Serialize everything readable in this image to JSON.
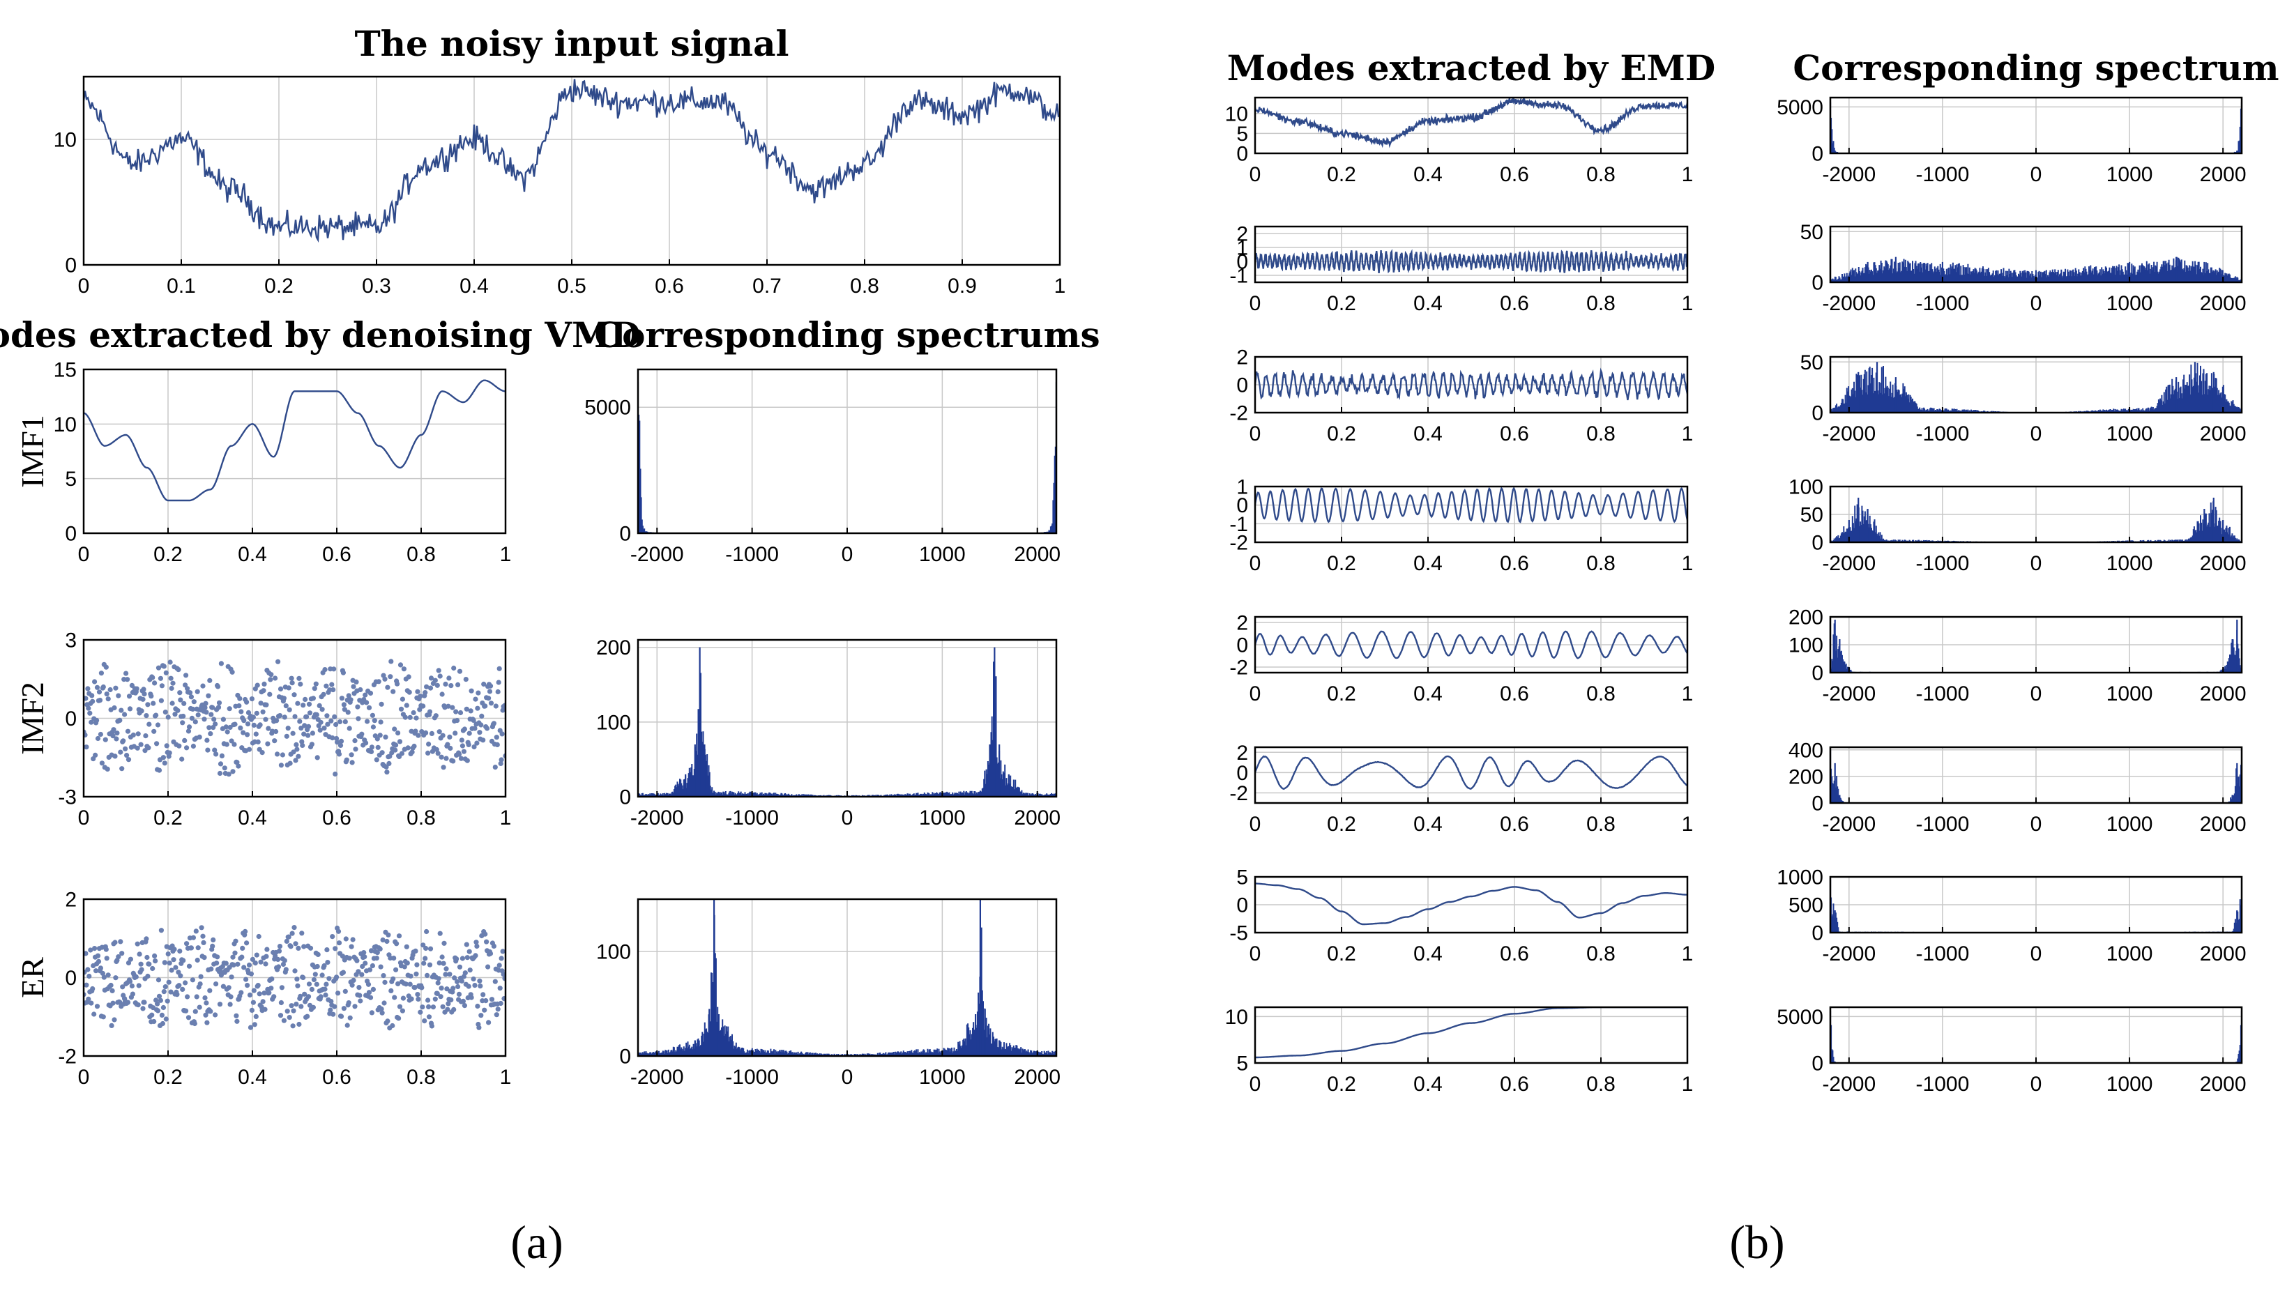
{
  "figure": {
    "caption_a": "(a)",
    "caption_b": "(b)"
  },
  "colors": {
    "line": "#2f4a8a",
    "scatter": "#6a7fb0",
    "spectrum": "#1f3a93"
  },
  "chart_data": [
    {
      "id": "noisy-input",
      "type": "line",
      "title": "The noisy input signal",
      "ylabel": "",
      "xlim": [
        0,
        1
      ],
      "ylim": [
        0,
        15
      ],
      "xticks": [
        0,
        0.1,
        0.2,
        0.3,
        0.4,
        0.5,
        0.6,
        0.7,
        0.8,
        0.9,
        1
      ],
      "xticklabels": [
        "0",
        "0.1",
        "0.2",
        "0.3",
        "0.4",
        "0.5",
        "0.6",
        "0.7",
        "0.8",
        "0.9",
        "1"
      ],
      "yticks": [
        0,
        10
      ],
      "yticklabels": [
        "0",
        "10"
      ],
      "x": [
        0,
        0.05,
        0.1,
        0.15,
        0.2,
        0.25,
        0.3,
        0.35,
        0.4,
        0.45,
        0.5,
        0.55,
        0.6,
        0.65,
        0.7,
        0.75,
        0.8,
        0.85,
        0.9,
        0.95,
        1
      ],
      "y": [
        13,
        8,
        10,
        6,
        3,
        3,
        3,
        8,
        10,
        7,
        14,
        13,
        13,
        13,
        9,
        6,
        8,
        13,
        12,
        14,
        12
      ],
      "noise": 0.9
    },
    {
      "id": "vmd-imf1-signal",
      "type": "line",
      "title": "Modes extracted by denoising VMD",
      "ylabel": "IMF1",
      "xlim": [
        0,
        1
      ],
      "ylim": [
        0,
        15
      ],
      "xticks": [
        0,
        0.2,
        0.4,
        0.6,
        0.8,
        1
      ],
      "xticklabels": [
        "0",
        "0.2",
        "0.4",
        "0.6",
        "0.8",
        "1"
      ],
      "yticks": [
        0,
        5,
        10,
        15
      ],
      "yticklabels": [
        "0",
        "5",
        "10",
        "15"
      ],
      "x": [
        0,
        0.05,
        0.1,
        0.15,
        0.2,
        0.25,
        0.3,
        0.35,
        0.4,
        0.45,
        0.5,
        0.55,
        0.6,
        0.65,
        0.7,
        0.75,
        0.8,
        0.85,
        0.9,
        0.95,
        1
      ],
      "y": [
        11,
        8,
        9,
        6,
        3,
        3,
        4,
        8,
        10,
        7,
        13,
        13,
        13,
        11,
        8,
        6,
        9,
        13,
        12,
        14,
        13
      ],
      "noise": 0
    },
    {
      "id": "vmd-imf1-spectrum",
      "type": "bar",
      "title": "Corresponding spectrums",
      "ylabel": "",
      "xlim": [
        -2200,
        2200
      ],
      "ylim": [
        0,
        6500
      ],
      "xticks": [
        -2000,
        -1000,
        0,
        1000,
        2000
      ],
      "xticklabels": [
        "-2000",
        "-1000",
        "0",
        "1000",
        "2000"
      ],
      "yticks": [
        0,
        5000
      ],
      "yticklabels": [
        "0",
        "5000"
      ],
      "x": [
        -2200,
        -2150,
        -2100,
        -2000,
        0,
        2000,
        2100,
        2150,
        2200
      ],
      "y": [
        6000,
        300,
        60,
        20,
        10,
        20,
        60,
        300,
        6000
      ]
    },
    {
      "id": "vmd-imf2-signal",
      "type": "scatter",
      "title": "",
      "ylabel": "IMF2",
      "xlim": [
        0,
        1
      ],
      "ylim": [
        -3,
        3
      ],
      "xticks": [
        0,
        0.2,
        0.4,
        0.6,
        0.8,
        1
      ],
      "xticklabels": [
        "0",
        "0.2",
        "0.4",
        "0.6",
        "0.8",
        "1"
      ],
      "yticks": [
        -3,
        0,
        3
      ],
      "yticklabels": [
        "-3",
        "0",
        "3"
      ],
      "amplitude": 2.2,
      "cycles": 7.5
    },
    {
      "id": "vmd-imf2-spectrum",
      "type": "bar",
      "title": "",
      "ylabel": "",
      "xlim": [
        -2200,
        2200
      ],
      "ylim": [
        0,
        210
      ],
      "xticks": [
        -2000,
        -1000,
        0,
        1000,
        2000
      ],
      "xticklabels": [
        "-2000",
        "-1000",
        "0",
        "1000",
        "2000"
      ],
      "yticks": [
        0,
        100,
        200
      ],
      "yticklabels": [
        "0",
        "100",
        "200"
      ],
      "x": [
        -1900,
        -1700,
        -1600,
        -1550,
        -1500,
        -1400,
        0,
        1400,
        1500,
        1550,
        1600,
        1700,
        1900
      ],
      "y": [
        5,
        30,
        70,
        200,
        70,
        8,
        2,
        8,
        70,
        200,
        70,
        30,
        5
      ]
    },
    {
      "id": "vmd-er-signal",
      "type": "scatter",
      "title": "",
      "ylabel": "ER",
      "xlim": [
        0,
        1
      ],
      "ylim": [
        -2,
        2
      ],
      "xticks": [
        0,
        0.2,
        0.4,
        0.6,
        0.8,
        1
      ],
      "xticklabels": [
        "0",
        "0.2",
        "0.4",
        "0.6",
        "0.8",
        "1"
      ],
      "yticks": [
        -2,
        0,
        2
      ],
      "yticklabels": [
        "-2",
        "0",
        "2"
      ],
      "amplitude": 1.3,
      "cycles": 9
    },
    {
      "id": "vmd-er-spectrum",
      "type": "bar",
      "title": "",
      "ylabel": "",
      "xlim": [
        -2200,
        2200
      ],
      "ylim": [
        0,
        150
      ],
      "xticks": [
        -2000,
        -1000,
        0,
        1000,
        2000
      ],
      "xticklabels": [
        "-2000",
        "-1000",
        "0",
        "1000",
        "2000"
      ],
      "yticks": [
        0,
        100
      ],
      "yticklabels": [
        "0",
        "100"
      ],
      "x": [
        -2000,
        -1600,
        -1450,
        -1400,
        -1350,
        -1100,
        0,
        1100,
        1350,
        1400,
        1450,
        1600,
        2000
      ],
      "y": [
        5,
        15,
        45,
        150,
        40,
        8,
        2,
        8,
        40,
        150,
        45,
        15,
        5
      ]
    },
    {
      "id": "emd-mode1-signal",
      "type": "line",
      "title": "Modes extracted by EMD",
      "ylabel": "",
      "xlim": [
        0,
        1
      ],
      "ylim": [
        0,
        14
      ],
      "xticks": [
        0,
        0.2,
        0.4,
        0.6,
        0.8,
        1
      ],
      "xticklabels": [
        "0",
        "0.2",
        "0.4",
        "0.6",
        "0.8",
        "1"
      ],
      "yticks": [
        0,
        5,
        10
      ],
      "yticklabels": [
        "0",
        "5",
        "10"
      ],
      "x": [
        0,
        0.1,
        0.2,
        0.3,
        0.4,
        0.5,
        0.6,
        0.7,
        0.8,
        0.9,
        1
      ],
      "y": [
        11,
        8,
        5,
        3,
        8,
        9,
        13,
        12,
        6,
        12,
        12
      ],
      "noise": 0.8
    },
    {
      "id": "emd-mode1-spectrum",
      "type": "bar",
      "title": "Corresponding spectrum",
      "ylabel": "",
      "xlim": [
        -2200,
        2200
      ],
      "ylim": [
        0,
        6000
      ],
      "xticks": [
        -2000,
        -1000,
        0,
        1000,
        2000
      ],
      "xticklabels": [
        "-2000",
        "-1000",
        "0",
        "1000",
        "2000"
      ],
      "yticks": [
        0,
        5000
      ],
      "yticklabels": [
        "0",
        "5000"
      ],
      "x": [
        -2200,
        -2150,
        -2100,
        0,
        2100,
        2150,
        2200
      ],
      "y": [
        5500,
        300,
        40,
        5,
        40,
        300,
        5500
      ]
    },
    {
      "id": "emd-mode2-signal",
      "type": "line",
      "title": "",
      "ylabel": "",
      "xlim": [
        0,
        1
      ],
      "ylim": [
        -1.5,
        2.5
      ],
      "xticks": [
        0,
        0.2,
        0.4,
        0.6,
        0.8,
        1
      ],
      "xticklabels": [
        "0",
        "0.2",
        "0.4",
        "0.6",
        "0.8",
        "1"
      ],
      "yticks": [
        -1,
        0,
        1,
        2
      ],
      "yticklabels": [
        "-1",
        "0",
        "1",
        "2"
      ],
      "amplitude": 0.6,
      "cycles": 90
    },
    {
      "id": "emd-mode2-spectrum",
      "type": "bar",
      "title": "",
      "ylabel": "",
      "xlim": [
        -2200,
        2200
      ],
      "ylim": [
        0,
        55
      ],
      "xticks": [
        -2000,
        -1000,
        0,
        1000,
        2000
      ],
      "xticklabels": [
        "-2000",
        "-1000",
        "0",
        "1000",
        "2000"
      ],
      "yticks": [
        0,
        50
      ],
      "yticklabels": [
        "0",
        "50"
      ],
      "x": [
        -2200,
        -1800,
        -1500,
        -1000,
        0,
        1000,
        1500,
        1800,
        2200
      ],
      "y": [
        5,
        20,
        25,
        20,
        12,
        20,
        25,
        20,
        5
      ]
    },
    {
      "id": "emd-mode3-signal",
      "type": "line",
      "title": "",
      "ylabel": "",
      "xlim": [
        0,
        1
      ],
      "ylim": [
        -2,
        2
      ],
      "xticks": [
        0,
        0.2,
        0.4,
        0.6,
        0.8,
        1
      ],
      "xticklabels": [
        "0",
        "0.2",
        "0.4",
        "0.6",
        "0.8",
        "1"
      ],
      "yticks": [
        -2,
        0,
        2
      ],
      "yticklabels": [
        "-2",
        "0",
        "2"
      ],
      "amplitude": 0.8,
      "cycles": 45
    },
    {
      "id": "emd-mode3-spectrum",
      "type": "bar",
      "title": "",
      "ylabel": "",
      "xlim": [
        -2200,
        2200
      ],
      "ylim": [
        0,
        55
      ],
      "xticks": [
        -2000,
        -1000,
        0,
        1000,
        2000
      ],
      "xticklabels": [
        "-2000",
        "-1000",
        "0",
        "1000",
        "2000"
      ],
      "yticks": [
        0,
        50
      ],
      "yticklabels": [
        "0",
        "50"
      ],
      "x": [
        -2200,
        -1900,
        -1700,
        -1500,
        -1200,
        0,
        1200,
        1500,
        1700,
        1900,
        2200
      ],
      "y": [
        5,
        40,
        50,
        35,
        5,
        0,
        5,
        35,
        50,
        40,
        5
      ]
    },
    {
      "id": "emd-mode4-signal",
      "type": "line",
      "title": "",
      "ylabel": "",
      "xlim": [
        0,
        1
      ],
      "ylim": [
        -2,
        1
      ],
      "xticks": [
        0,
        0.2,
        0.4,
        0.6,
        0.8,
        1
      ],
      "xticklabels": [
        "0",
        "0.2",
        "0.4",
        "0.6",
        "0.8",
        "1"
      ],
      "yticks": [
        -2,
        -1,
        0,
        1
      ],
      "yticklabels": [
        "-2",
        "-1",
        "0",
        "1"
      ],
      "amplitude": 0.9,
      "cycles": 32
    },
    {
      "id": "emd-mode4-spectrum",
      "type": "bar",
      "title": "",
      "ylabel": "",
      "xlim": [
        -2200,
        2200
      ],
      "ylim": [
        0,
        100
      ],
      "xticks": [
        -2000,
        -1000,
        0,
        1000,
        2000
      ],
      "xticklabels": [
        "-2000",
        "-1000",
        "0",
        "1000",
        "2000"
      ],
      "yticks": [
        0,
        50,
        100
      ],
      "yticklabels": [
        "0",
        "50",
        "100"
      ],
      "x": [
        -2200,
        -2000,
        -1900,
        -1800,
        -1600,
        0,
        1600,
        1800,
        1900,
        2000,
        2200
      ],
      "y": [
        3,
        40,
        80,
        60,
        5,
        0,
        5,
        60,
        80,
        40,
        3
      ]
    },
    {
      "id": "emd-mode5-signal",
      "type": "line",
      "title": "",
      "ylabel": "",
      "xlim": [
        0,
        1
      ],
      "ylim": [
        -2.5,
        2.5
      ],
      "xticks": [
        0,
        0.2,
        0.4,
        0.6,
        0.8,
        1
      ],
      "xticklabels": [
        "0",
        "0.2",
        "0.4",
        "0.6",
        "0.8",
        "1"
      ],
      "yticks": [
        -2,
        0,
        2
      ],
      "yticklabels": [
        "-2",
        "0",
        "2"
      ],
      "amplitude": 1.2,
      "cycles": 18
    },
    {
      "id": "emd-mode5-spectrum",
      "type": "bar",
      "title": "",
      "ylabel": "",
      "xlim": [
        -2200,
        2200
      ],
      "ylim": [
        0,
        200
      ],
      "xticks": [
        -2000,
        -1000,
        0,
        1000,
        2000
      ],
      "xticklabels": [
        "-2000",
        "-1000",
        "0",
        "1000",
        "2000"
      ],
      "yticks": [
        0,
        100,
        200
      ],
      "yticklabels": [
        "0",
        "100",
        "200"
      ],
      "x": [
        -2200,
        -2150,
        -2100,
        -2050,
        -1950,
        0,
        1950,
        2050,
        2100,
        2150,
        2200
      ],
      "y": [
        20,
        190,
        120,
        40,
        3,
        0,
        3,
        40,
        120,
        190,
        20
      ]
    },
    {
      "id": "emd-mode6-signal",
      "type": "line",
      "title": "",
      "ylabel": "",
      "xlim": [
        0,
        1
      ],
      "ylim": [
        -3,
        2.5
      ],
      "xticks": [
        0,
        0.2,
        0.4,
        0.6,
        0.8,
        1
      ],
      "xticklabels": [
        "0",
        "0.2",
        "0.4",
        "0.6",
        "0.8",
        "1"
      ],
      "yticks": [
        -2,
        0,
        2
      ],
      "yticklabels": [
        "-2",
        "0",
        "2"
      ],
      "amplitude": 1.6,
      "cycles": 8
    },
    {
      "id": "emd-mode6-spectrum",
      "type": "bar",
      "title": "",
      "ylabel": "",
      "xlim": [
        -2200,
        2200
      ],
      "ylim": [
        0,
        420
      ],
      "xticks": [
        -2000,
        -1000,
        0,
        1000,
        2000
      ],
      "xticklabels": [
        "-2000",
        "-1000",
        "0",
        "1000",
        "2000"
      ],
      "yticks": [
        0,
        200,
        400
      ],
      "yticklabels": [
        "0",
        "200",
        "400"
      ],
      "x": [
        -2200,
        -2150,
        -2100,
        -2050,
        0,
        2050,
        2100,
        2150,
        2200
      ],
      "y": [
        400,
        300,
        60,
        5,
        0,
        5,
        60,
        300,
        400
      ]
    },
    {
      "id": "emd-mode7-signal",
      "type": "line",
      "title": "",
      "ylabel": "",
      "xlim": [
        0,
        1
      ],
      "ylim": [
        -5,
        5
      ],
      "xticks": [
        0,
        0.2,
        0.4,
        0.6,
        0.8,
        1
      ],
      "xticklabels": [
        "0",
        "0.2",
        "0.4",
        "0.6",
        "0.8",
        "1"
      ],
      "yticks": [
        -5,
        0,
        5
      ],
      "yticklabels": [
        "-5",
        "0",
        "5"
      ],
      "x": [
        0,
        0.05,
        0.1,
        0.15,
        0.2,
        0.25,
        0.3,
        0.35,
        0.4,
        0.45,
        0.5,
        0.55,
        0.6,
        0.65,
        0.7,
        0.75,
        0.8,
        0.85,
        0.9,
        0.95,
        1
      ],
      "y": [
        3.8,
        3.5,
        2.8,
        1.2,
        -1.2,
        -3.5,
        -3.3,
        -2.2,
        -0.8,
        0.5,
        1.5,
        2.5,
        3.2,
        2.6,
        0.5,
        -2.3,
        -1.5,
        0.3,
        1.6,
        2.1,
        1.8
      ],
      "noise": 0
    },
    {
      "id": "emd-mode7-spectrum",
      "type": "bar",
      "title": "",
      "ylabel": "",
      "xlim": [
        -2200,
        2200
      ],
      "ylim": [
        0,
        1000
      ],
      "xticks": [
        -2000,
        -1000,
        0,
        1000,
        2000
      ],
      "xticklabels": [
        "-2000",
        "-1000",
        "0",
        "1000",
        "2000"
      ],
      "yticks": [
        0,
        500,
        1000
      ],
      "yticklabels": [
        "0",
        "500",
        "1000"
      ],
      "x": [
        -2200,
        -2150,
        -2100,
        0,
        2100,
        2150,
        2200
      ],
      "y": [
        950,
        400,
        20,
        0,
        20,
        400,
        950
      ]
    },
    {
      "id": "emd-residue-signal",
      "type": "line",
      "title": "",
      "ylabel": "",
      "xlim": [
        0,
        1
      ],
      "ylim": [
        5,
        11
      ],
      "xticks": [
        0,
        0.2,
        0.4,
        0.6,
        0.8,
        1
      ],
      "xticklabels": [
        "0",
        "0.2",
        "0.4",
        "0.6",
        "0.8",
        "1"
      ],
      "yticks": [
        5,
        10
      ],
      "yticklabels": [
        "5",
        "10"
      ],
      "x": [
        0,
        0.1,
        0.2,
        0.3,
        0.4,
        0.5,
        0.6,
        0.7,
        0.8,
        0.9,
        1
      ],
      "y": [
        5.6,
        5.8,
        6.3,
        7.1,
        8.2,
        9.3,
        10.3,
        10.9,
        11,
        11,
        11
      ],
      "noise": 0
    },
    {
      "id": "emd-residue-spectrum",
      "type": "bar",
      "title": "",
      "ylabel": "",
      "xlim": [
        -2200,
        2200
      ],
      "ylim": [
        0,
        6000
      ],
      "xticks": [
        -2000,
        -1000,
        0,
        1000,
        2000
      ],
      "xticklabels": [
        "-2000",
        "-1000",
        "0",
        "1000",
        "2000"
      ],
      "yticks": [
        0,
        5000
      ],
      "yticklabels": [
        "0",
        "5000"
      ],
      "x": [
        -2200,
        -2150,
        -2100,
        0,
        2100,
        2150,
        2200
      ],
      "y": [
        5600,
        150,
        10,
        0,
        10,
        150,
        5600
      ]
    }
  ]
}
